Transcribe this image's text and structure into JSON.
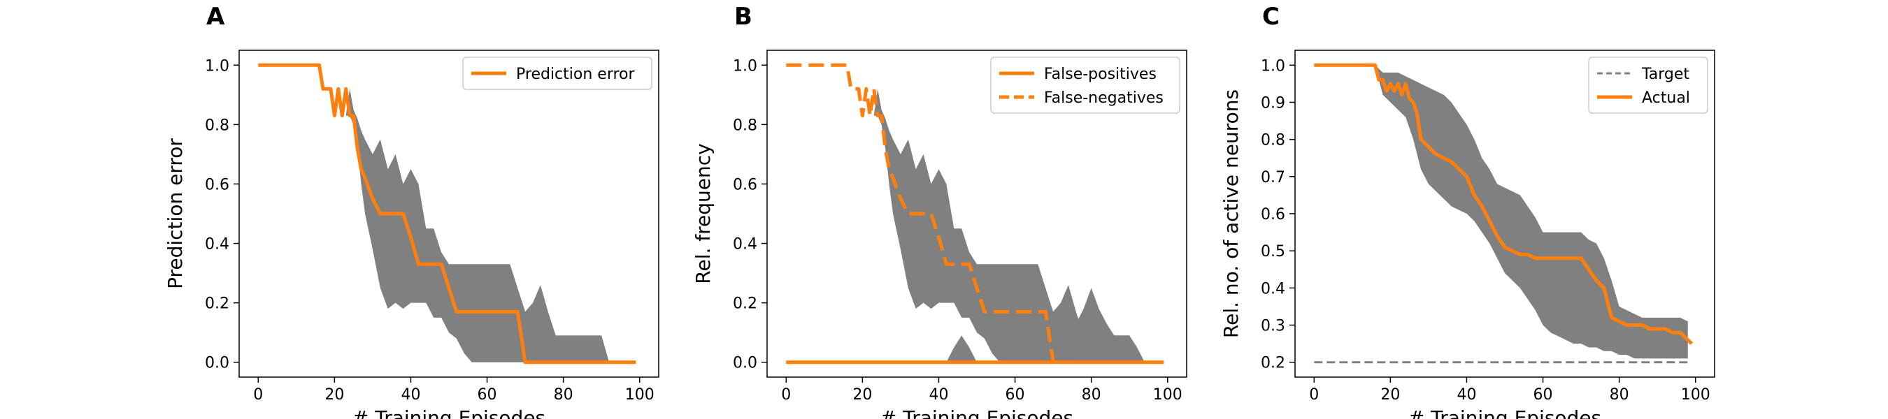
{
  "figure": {
    "panels": [
      "A",
      "B",
      "C"
    ],
    "xlabel": "# Training Episodes",
    "colors": {
      "orange": "#ff7f0e",
      "band": "#808080",
      "target": "#808080",
      "axis": "#000000"
    }
  },
  "chart_data": [
    {
      "panel": "A",
      "type": "line",
      "xlabel": "# Training Episodes",
      "ylabel": "Prediction error",
      "xlim": [
        -5,
        105
      ],
      "ylim": [
        -0.05,
        1.05
      ],
      "xticks": [
        "0",
        "20",
        "40",
        "60",
        "80",
        "100"
      ],
      "yticks": [
        "0.0",
        "0.2",
        "0.4",
        "0.6",
        "0.8",
        "1.0"
      ],
      "legend": {
        "position": "top-right",
        "entries": [
          "Prediction error"
        ]
      },
      "grid": false,
      "band": {
        "x": [
          0,
          16,
          18,
          20,
          21,
          22,
          23,
          24,
          25,
          26,
          27,
          28,
          30,
          32,
          34,
          36,
          38,
          40,
          42,
          44,
          46,
          48,
          50,
          52,
          54,
          56,
          58,
          60,
          62,
          64,
          66,
          68,
          70,
          72,
          74,
          76,
          78,
          80,
          82,
          84,
          86,
          88,
          90,
          92,
          94,
          96,
          98
        ],
        "lower": [
          1.0,
          1.0,
          0.92,
          0.92,
          0.83,
          0.92,
          0.83,
          0.83,
          0.8,
          0.72,
          0.6,
          0.5,
          0.38,
          0.25,
          0.18,
          0.2,
          0.18,
          0.2,
          0.2,
          0.2,
          0.15,
          0.15,
          0.1,
          0.08,
          0.03,
          0.0,
          0.0,
          0.0,
          0.0,
          0.0,
          0.0,
          0.0,
          0.0,
          0.0,
          0.0,
          0.0,
          0.0,
          0.0,
          0.0,
          0.0,
          0.0,
          0.0,
          0.0,
          0.0,
          0.0,
          0.0,
          0.0
        ],
        "upper": [
          1.0,
          1.0,
          0.92,
          0.92,
          0.83,
          0.92,
          0.83,
          0.92,
          0.85,
          0.82,
          0.78,
          0.75,
          0.7,
          0.75,
          0.65,
          0.7,
          0.6,
          0.65,
          0.6,
          0.45,
          0.45,
          0.37,
          0.33,
          0.33,
          0.33,
          0.33,
          0.33,
          0.33,
          0.33,
          0.33,
          0.33,
          0.25,
          0.17,
          0.2,
          0.26,
          0.17,
          0.09,
          0.09,
          0.09,
          0.09,
          0.09,
          0.09,
          0.09,
          0.0,
          0.0,
          0.0,
          0.0
        ]
      },
      "series": [
        {
          "name": "Prediction error",
          "style": "solid",
          "x": [
            0,
            16,
            17,
            19,
            20,
            21,
            22,
            23,
            24,
            25,
            26,
            27,
            28,
            30,
            32,
            38,
            40,
            42,
            44,
            46,
            48,
            50,
            52,
            54,
            56,
            68,
            70,
            99
          ],
          "y": [
            1.0,
            1.0,
            0.92,
            0.92,
            0.83,
            0.92,
            0.83,
            0.92,
            0.83,
            0.83,
            0.72,
            0.65,
            0.62,
            0.55,
            0.5,
            0.5,
            0.42,
            0.33,
            0.33,
            0.33,
            0.33,
            0.25,
            0.17,
            0.17,
            0.17,
            0.17,
            0.0,
            0.0
          ]
        }
      ]
    },
    {
      "panel": "B",
      "type": "line",
      "xlabel": "# Training Episodes",
      "ylabel": "Rel. frequency",
      "xlim": [
        -5,
        105
      ],
      "ylim": [
        -0.05,
        1.05
      ],
      "xticks": [
        "0",
        "20",
        "40",
        "60",
        "80",
        "100"
      ],
      "yticks": [
        "0.0",
        "0.2",
        "0.4",
        "0.6",
        "0.8",
        "1.0"
      ],
      "legend": {
        "position": "top-right",
        "entries": [
          "False-positives",
          "False-negatives"
        ]
      },
      "grid": false,
      "bands": [
        {
          "x": [
            0,
            16,
            18,
            20,
            21,
            22,
            23,
            24,
            25,
            26,
            27,
            28,
            30,
            32,
            34,
            36,
            38,
            40,
            42,
            44,
            46,
            48,
            50,
            52,
            54,
            56,
            58,
            60,
            62,
            64,
            66,
            68,
            70,
            72,
            74,
            76,
            78,
            80,
            82,
            84,
            86,
            88,
            90,
            92,
            94,
            96,
            98
          ],
          "lower": [
            1.0,
            1.0,
            0.92,
            0.92,
            0.83,
            0.92,
            0.83,
            0.83,
            0.8,
            0.72,
            0.6,
            0.5,
            0.38,
            0.25,
            0.18,
            0.2,
            0.18,
            0.2,
            0.2,
            0.2,
            0.15,
            0.15,
            0.1,
            0.08,
            0.03,
            0.0,
            0.0,
            0.0,
            0.0,
            0.0,
            0.0,
            0.0,
            0.0,
            0.0,
            0.0,
            0.0,
            0.0,
            0.0,
            0.0,
            0.0,
            0.0,
            0.0,
            0.0,
            0.0,
            0.0,
            0.0,
            0.0
          ],
          "upper": [
            1.0,
            1.0,
            0.92,
            0.92,
            0.83,
            0.92,
            0.83,
            0.92,
            0.85,
            0.82,
            0.78,
            0.75,
            0.7,
            0.75,
            0.65,
            0.7,
            0.6,
            0.65,
            0.6,
            0.45,
            0.45,
            0.37,
            0.33,
            0.33,
            0.33,
            0.33,
            0.33,
            0.33,
            0.33,
            0.33,
            0.33,
            0.25,
            0.17,
            0.2,
            0.26,
            0.17,
            0.09,
            0.09,
            0.09,
            0.09,
            0.09,
            0.09,
            0.09,
            0.0,
            0.0,
            0.0,
            0.0
          ]
        },
        {
          "x": [
            42,
            44,
            46,
            48,
            50,
            52,
            54,
            56,
            58,
            60,
            62,
            64,
            66,
            68,
            70,
            72,
            74,
            76,
            78,
            80,
            82,
            84,
            86,
            88,
            90,
            92,
            94
          ],
          "lower": [
            0.0,
            0.0,
            0.0,
            0.0,
            0.0,
            0.0,
            0.0,
            0.0,
            0.0,
            0.0,
            0.0,
            0.0,
            0.0,
            0.0,
            0.0,
            0.0,
            0.0,
            0.0,
            0.0,
            0.0,
            0.0,
            0.0,
            0.0,
            0.0,
            0.0,
            0.0,
            0.0
          ],
          "upper": [
            0.0,
            0.05,
            0.09,
            0.05,
            0.0,
            0.0,
            0.0,
            0.0,
            0.0,
            0.0,
            0.0,
            0.0,
            0.0,
            0.0,
            0.05,
            0.09,
            0.05,
            0.13,
            0.18,
            0.25,
            0.18,
            0.13,
            0.09,
            0.09,
            0.09,
            0.05,
            0.0
          ]
        }
      ],
      "series": [
        {
          "name": "False-positives",
          "style": "solid",
          "x": [
            0,
            99
          ],
          "y": [
            0.0,
            0.0
          ]
        },
        {
          "name": "False-negatives",
          "style": "dashed",
          "x": [
            0,
            16,
            17,
            19,
            20,
            21,
            22,
            23,
            24,
            25,
            26,
            27,
            28,
            30,
            32,
            38,
            40,
            42,
            44,
            46,
            48,
            50,
            52,
            54,
            56,
            68,
            70
          ],
          "y": [
            1.0,
            1.0,
            0.92,
            0.92,
            0.83,
            0.92,
            0.83,
            0.92,
            0.83,
            0.83,
            0.72,
            0.65,
            0.62,
            0.55,
            0.5,
            0.5,
            0.42,
            0.33,
            0.33,
            0.33,
            0.33,
            0.25,
            0.17,
            0.17,
            0.17,
            0.17,
            0.0
          ]
        }
      ]
    },
    {
      "panel": "C",
      "type": "line",
      "xlabel": "# Training Episodes",
      "ylabel": "Rel. no. of active neurons",
      "xlim": [
        -5,
        105
      ],
      "ylim": [
        0.16,
        1.04
      ],
      "xticks": [
        "0",
        "20",
        "40",
        "60",
        "80",
        "100"
      ],
      "yticks": [
        "0.2",
        "0.3",
        "0.4",
        "0.5",
        "0.6",
        "0.7",
        "0.8",
        "0.9",
        "1.0"
      ],
      "legend": {
        "position": "top-right",
        "entries": [
          "Target",
          "Actual"
        ]
      },
      "grid": false,
      "band": {
        "x": [
          0,
          16,
          18,
          20,
          22,
          24,
          26,
          28,
          30,
          32,
          34,
          36,
          38,
          40,
          42,
          44,
          46,
          48,
          50,
          52,
          54,
          56,
          58,
          60,
          62,
          64,
          66,
          68,
          70,
          72,
          74,
          76,
          78,
          80,
          82,
          84,
          86,
          88,
          90,
          92,
          94,
          96,
          98
        ],
        "lower": [
          1.0,
          1.0,
          0.92,
          0.9,
          0.88,
          0.86,
          0.8,
          0.72,
          0.68,
          0.66,
          0.64,
          0.62,
          0.61,
          0.6,
          0.58,
          0.55,
          0.52,
          0.48,
          0.44,
          0.42,
          0.4,
          0.37,
          0.34,
          0.3,
          0.28,
          0.27,
          0.26,
          0.25,
          0.25,
          0.24,
          0.24,
          0.23,
          0.23,
          0.22,
          0.22,
          0.21,
          0.21,
          0.21,
          0.21,
          0.21,
          0.21,
          0.21,
          0.21
        ],
        "upper": [
          1.0,
          1.0,
          0.98,
          0.98,
          0.98,
          0.97,
          0.96,
          0.95,
          0.94,
          0.93,
          0.92,
          0.9,
          0.87,
          0.84,
          0.8,
          0.75,
          0.72,
          0.68,
          0.67,
          0.66,
          0.65,
          0.62,
          0.59,
          0.55,
          0.55,
          0.55,
          0.55,
          0.55,
          0.55,
          0.53,
          0.52,
          0.48,
          0.42,
          0.35,
          0.34,
          0.33,
          0.32,
          0.32,
          0.32,
          0.32,
          0.32,
          0.32,
          0.31
        ]
      },
      "series": [
        {
          "name": "Target",
          "style": "dashed",
          "x": [
            0,
            99
          ],
          "y": [
            0.2,
            0.2
          ]
        },
        {
          "name": "Actual",
          "style": "solid",
          "x": [
            0,
            16,
            17,
            18,
            19,
            20,
            21,
            22,
            23,
            24,
            25,
            26,
            27,
            28,
            30,
            32,
            34,
            36,
            38,
            40,
            42,
            44,
            46,
            48,
            50,
            52,
            54,
            56,
            58,
            60,
            62,
            64,
            66,
            68,
            70,
            72,
            74,
            76,
            78,
            80,
            82,
            84,
            86,
            88,
            90,
            92,
            94,
            96,
            98,
            99
          ],
          "y": [
            1.0,
            1.0,
            0.96,
            0.96,
            0.93,
            0.95,
            0.93,
            0.95,
            0.92,
            0.95,
            0.91,
            0.9,
            0.87,
            0.8,
            0.78,
            0.76,
            0.75,
            0.74,
            0.72,
            0.7,
            0.65,
            0.62,
            0.58,
            0.54,
            0.51,
            0.5,
            0.49,
            0.49,
            0.48,
            0.48,
            0.48,
            0.48,
            0.48,
            0.48,
            0.48,
            0.45,
            0.42,
            0.4,
            0.32,
            0.31,
            0.3,
            0.3,
            0.3,
            0.29,
            0.29,
            0.29,
            0.28,
            0.28,
            0.26,
            0.25
          ]
        }
      ]
    }
  ]
}
